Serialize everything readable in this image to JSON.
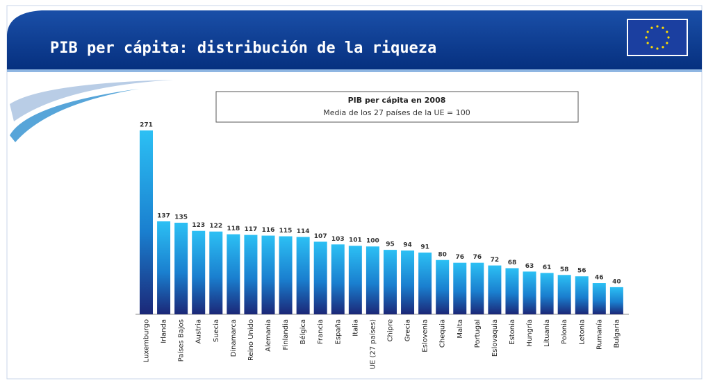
{
  "header": {
    "title": "PIB per cápita: distribución de la riqueza"
  },
  "chart_data": {
    "type": "bar",
    "title": "PIB per cápita en 2008",
    "subtitle": "Media de los 27 países de la UE = 100",
    "categories": [
      "Luxemburgo",
      "Irlanda",
      "Países Bajos",
      "Austria",
      "Suecia",
      "Dinamarca",
      "Reino Unido",
      "Alemania",
      "Finlandia",
      "Bélgica",
      "Francia",
      "España",
      "Italia",
      "UE (27 países)",
      "Chipre",
      "Grecia",
      "Eslovenia",
      "Chequia",
      "Malta",
      "Portugal",
      "Eslovaquia",
      "Estonia",
      "Hungría",
      "Lituania",
      "Polonia",
      "Letonia",
      "Rumanía",
      "Bulgaria"
    ],
    "values": [
      271,
      137,
      135,
      123,
      122,
      118,
      117,
      116,
      115,
      114,
      107,
      103,
      101,
      100,
      95,
      94,
      91,
      80,
      76,
      76,
      72,
      68,
      63,
      61,
      58,
      56,
      46,
      40
    ]
  }
}
